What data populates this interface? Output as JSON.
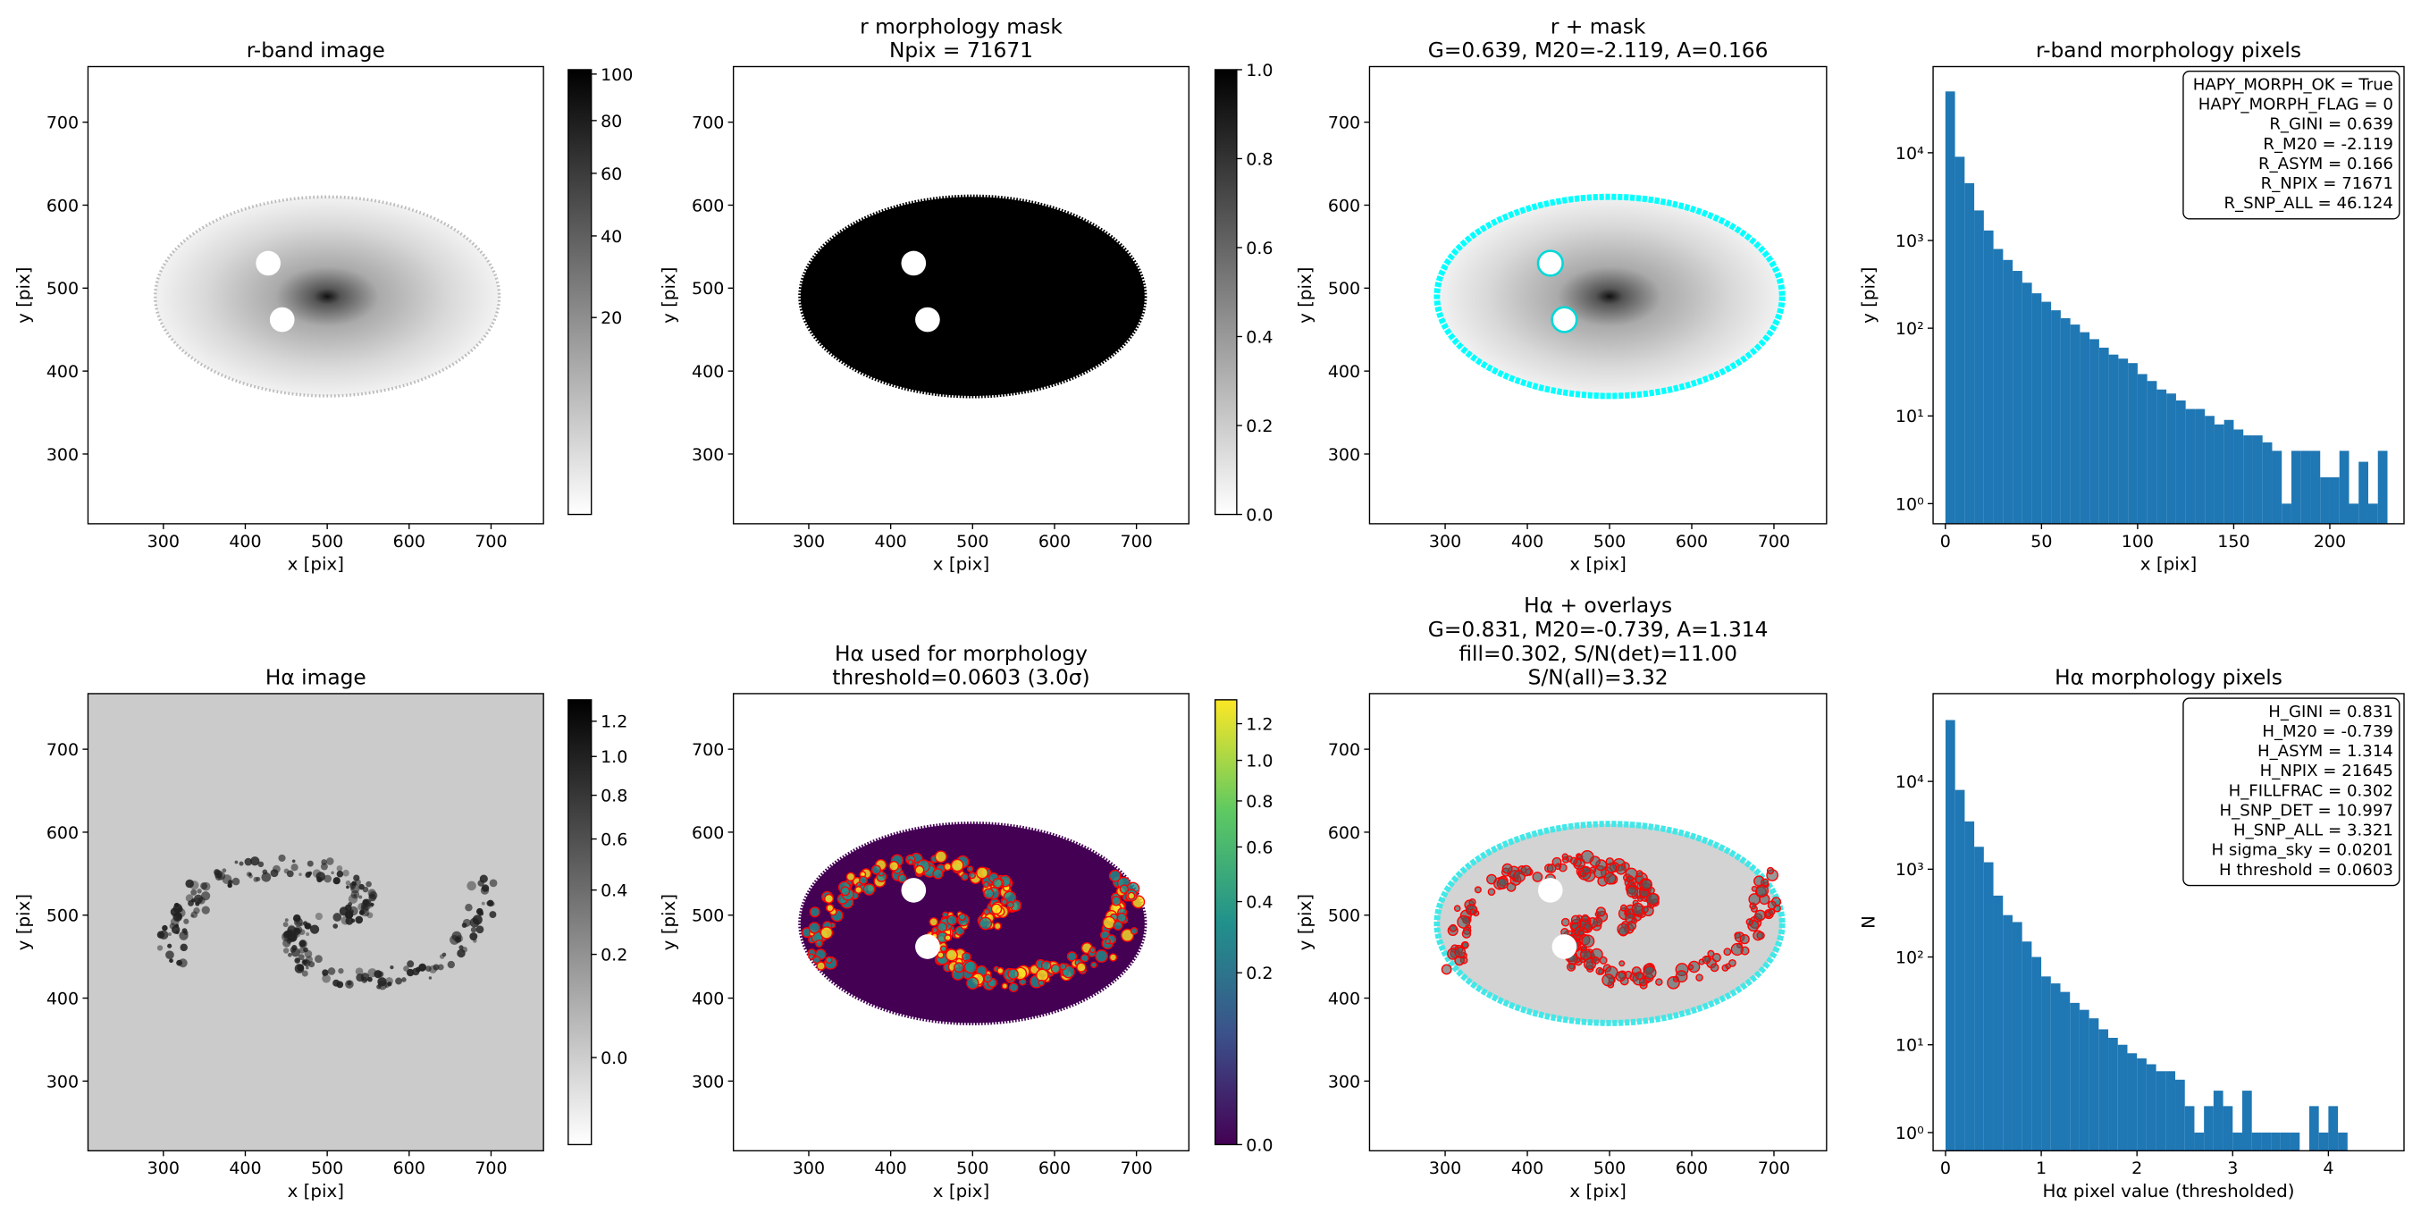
{
  "chart_data": [
    {
      "type": "image",
      "title": [
        "r-band image"
      ],
      "xlabel": "x [pix]",
      "ylabel": "y [pix]",
      "xlim": [
        208,
        764
      ],
      "ylim": [
        216,
        767
      ],
      "xticks": [
        300,
        400,
        500,
        600,
        700
      ],
      "yticks": [
        300,
        400,
        500,
        600,
        700
      ],
      "colorbar": {
        "cmap": "gray_r",
        "scale": "sqrt",
        "clim": [
          0,
          102
        ],
        "ticks": [
          20,
          40,
          60,
          80,
          100
        ]
      }
    },
    {
      "type": "image",
      "title": [
        "r morphology mask",
        "Npix = 71671"
      ],
      "xlabel": "x [pix]",
      "ylabel": "y [pix]",
      "xlim": [
        208,
        764
      ],
      "ylim": [
        216,
        767
      ],
      "xticks": [
        300,
        400,
        500,
        600,
        700
      ],
      "yticks": [
        300,
        400,
        500,
        600,
        700
      ],
      "colorbar": {
        "cmap": "gray_r",
        "scale": "linear",
        "clim": [
          0,
          1
        ],
        "ticks": [
          {
            "value": 0,
            "label": "0.0"
          },
          0.2,
          0.4,
          0.6,
          0.8,
          {
            "value": 1,
            "label": "1.0"
          }
        ]
      }
    },
    {
      "type": "image",
      "title": [
        "r + mask",
        "G=0.639, M20=-2.119, A=0.166"
      ],
      "xlabel": "x [pix]",
      "ylabel": "y [pix]",
      "xlim": [
        208,
        764
      ],
      "ylim": [
        216,
        767
      ],
      "xticks": [
        300,
        400,
        500,
        600,
        700
      ],
      "yticks": [
        300,
        400,
        500,
        600,
        700
      ]
    },
    {
      "type": "histogram",
      "title": [
        "r-band morphology pixels"
      ],
      "xlabel": "x [pix]",
      "ylabel": "y [pix]",
      "color": "#1f77b4",
      "log_y": true,
      "xlim": [
        -6.4,
        238.6
      ],
      "ylim": [
        0.59,
        96000
      ],
      "xticks": [
        0,
        50,
        100,
        150,
        200
      ],
      "yticks": [
        {
          "value": 1,
          "label": "10⁰"
        },
        {
          "value": 10,
          "label": "10¹"
        },
        {
          "value": 100,
          "label": "10²"
        },
        {
          "value": 1000,
          "label": "10³"
        },
        {
          "value": 10000,
          "label": "10⁴"
        }
      ],
      "bins": [
        0,
        5,
        10,
        15,
        20,
        25,
        30,
        35,
        40,
        45,
        50,
        55,
        60,
        65,
        70,
        75,
        80,
        85,
        90,
        95,
        100,
        105,
        110,
        115,
        120,
        125,
        130,
        135,
        140,
        145,
        150,
        155,
        160,
        165,
        170,
        175,
        180,
        185,
        190,
        195,
        200,
        205,
        210,
        215,
        220,
        225,
        230
      ],
      "counts": [
        50000,
        9000,
        4500,
        2200,
        1300,
        800,
        600,
        450,
        330,
        250,
        200,
        160,
        130,
        110,
        90,
        75,
        60,
        50,
        45,
        40,
        30,
        25,
        20,
        18,
        15,
        12,
        12,
        10,
        8,
        9,
        7,
        6,
        6,
        5,
        4,
        1,
        4,
        4,
        4,
        2,
        2,
        4,
        1,
        3,
        1,
        4
      ],
      "annotation": [
        "HAPY_MORPH_OK = True",
        "HAPY_MORPH_FLAG = 0",
        "R_GINI = 0.639",
        "R_M20 = -2.119",
        "R_ASYM = 0.166",
        "R_NPIX = 71671",
        "R_SNP_ALL = 46.124"
      ]
    },
    {
      "type": "image",
      "title": [
        "Hα image"
      ],
      "xlabel": "x [pix]",
      "ylabel": "y [pix]",
      "xlim": [
        208,
        764
      ],
      "ylim": [
        216,
        767
      ],
      "xticks": [
        300,
        400,
        500,
        600,
        700
      ],
      "yticks": [
        300,
        400,
        500,
        600,
        700
      ],
      "colorbar": {
        "cmap": "gray_r",
        "scale": "sqrt",
        "clim": [
          -0.053,
          1.33
        ],
        "ticks": [
          {
            "value": 0,
            "label": "0.0"
          },
          0.2,
          0.4,
          0.6,
          0.8,
          {
            "value": 1,
            "label": "1.0"
          },
          1.2
        ]
      }
    },
    {
      "type": "image",
      "title": [
        "Hα used for morphology",
        "threshold=0.0603 (3.0σ)"
      ],
      "xlabel": "x [pix]",
      "ylabel": "y [pix]",
      "xlim": [
        208,
        764
      ],
      "ylim": [
        216,
        767
      ],
      "xticks": [
        300,
        400,
        500,
        600,
        700
      ],
      "yticks": [
        300,
        400,
        500,
        600,
        700
      ],
      "colorbar": {
        "cmap": "viridis",
        "scale": "sqrt",
        "clim": [
          0,
          1.34
        ],
        "ticks": [
          {
            "value": 0,
            "label": "0.0"
          },
          0.2,
          0.4,
          0.6,
          0.8,
          {
            "value": 1,
            "label": "1.0"
          },
          1.2
        ]
      }
    },
    {
      "type": "image",
      "title": [
        "Hα + overlays",
        "G=0.831, M20=-0.739, A=1.314",
        "fill=0.302, S/N(det)=11.00",
        "S/N(all)=3.32"
      ],
      "xlabel": "x [pix]",
      "ylabel": "y [pix]",
      "xlim": [
        208,
        764
      ],
      "ylim": [
        216,
        767
      ],
      "xticks": [
        300,
        400,
        500,
        600,
        700
      ],
      "yticks": [
        300,
        400,
        500,
        600,
        700
      ]
    },
    {
      "type": "histogram",
      "title": [
        "Hα morphology pixels"
      ],
      "xlabel": "Hα pixel value (thresholded)",
      "ylabel": "N",
      "color": "#1f77b4",
      "log_y": true,
      "xlim": [
        -0.13,
        4.79
      ],
      "ylim": [
        0.62,
        100000
      ],
      "xticks": [
        0,
        1,
        2,
        3,
        4
      ],
      "yticks": [
        {
          "value": 1,
          "label": "10⁰"
        },
        {
          "value": 10,
          "label": "10¹"
        },
        {
          "value": 100,
          "label": "10²"
        },
        {
          "value": 1000,
          "label": "10³"
        },
        {
          "value": 10000,
          "label": "10⁴"
        }
      ],
      "bins": [
        0,
        0.1,
        0.2,
        0.3,
        0.4,
        0.5,
        0.6,
        0.7,
        0.8,
        0.9,
        1.0,
        1.1,
        1.2,
        1.3,
        1.4,
        1.5,
        1.6,
        1.7,
        1.8,
        1.9,
        2.0,
        2.1,
        2.2,
        2.3,
        2.4,
        2.5,
        2.6,
        2.7,
        2.8,
        2.9,
        3.0,
        3.1,
        3.2,
        3.3,
        3.4,
        3.5,
        3.6,
        3.7,
        3.8,
        3.9,
        4.0,
        4.1,
        4.2
      ],
      "counts": [
        50000,
        8000,
        3500,
        1800,
        1200,
        500,
        300,
        250,
        150,
        100,
        60,
        50,
        40,
        30,
        25,
        20,
        15,
        12,
        10,
        8,
        7,
        6,
        5,
        5,
        4,
        2,
        1,
        2,
        3,
        2,
        1,
        3,
        1,
        1,
        1,
        1,
        1,
        0,
        2,
        1,
        2,
        1
      ],
      "annotation": [
        "H_GINI = 0.831",
        "H_M20 = -0.739",
        "H_ASYM = 1.314",
        "H_NPIX = 21645",
        "H_FILLFRAC = 0.302",
        "H_SNP_DET = 10.997",
        "H_SNP_ALL = 3.321",
        "H sigma_sky = 0.0201",
        "H threshold = 0.0603"
      ]
    }
  ]
}
